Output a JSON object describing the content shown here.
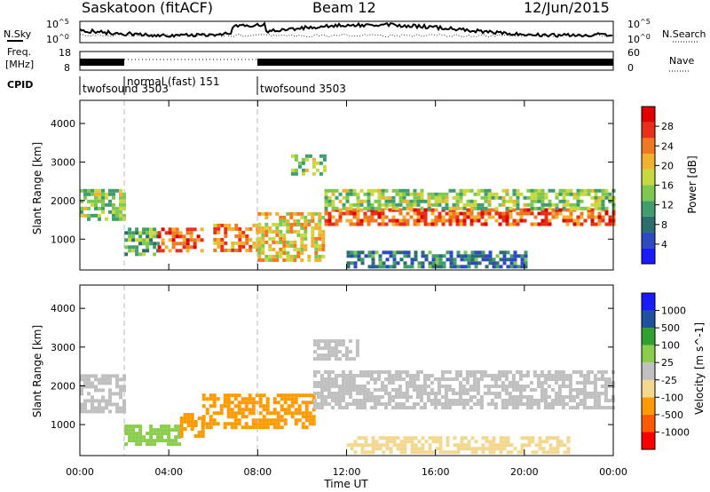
{
  "header": {
    "station": "Saskatoon (fitACF)",
    "beam": "Beam 12",
    "date": "12/Jun/2015"
  },
  "left_labels": {
    "nsky": "N.Sky",
    "freq": "Freq.",
    "mhz": "[MHz]",
    "cpid": "CPID"
  },
  "right_labels": {
    "nsearch": "N.Search",
    "nave": "Nave"
  },
  "noise_axis": {
    "top": "10^5",
    "bottom": "10^0"
  },
  "freq_axis": {
    "top": "18",
    "bottom": "8"
  },
  "nave_axis": {
    "top": "60",
    "bottom": "0"
  },
  "cpid_segments": [
    {
      "start_hour": 0.0,
      "label": "twofsound 3503"
    },
    {
      "start_hour": 2.0,
      "label": "normal (fast) 151"
    },
    {
      "start_hour": 8.0,
      "label": "twofsound 3503"
    }
  ],
  "colors": {
    "power": [
      "#1a1aff",
      "#2d4bbf",
      "#2a6e6e",
      "#3f9e6b",
      "#7ec850",
      "#c8d840",
      "#f0b030",
      "#f07820",
      "#e83018",
      "#e00000"
    ],
    "velocity": [
      "#ff0000",
      "#ff5a00",
      "#ff9a00",
      "#f3d890",
      "#c0c0c0",
      "#8acd4d",
      "#30a030",
      "#2050a0",
      "#1a1aff"
    ],
    "vmap_key": {
      "-1200": "#ff0000",
      "-800": "#ff5a00",
      "-300": "#ff9a00",
      "-60": "#f3d890",
      "0": "#c0c0c0",
      "60": "#8acd4d",
      "300": "#30a030",
      "800": "#2050a0",
      "1200": "#1a1aff"
    }
  },
  "chart_data": [
    {
      "type": "heatmap",
      "title": "",
      "xlabel": "Time UT",
      "ylabel": "Slant Range [km]",
      "x_ticks": [
        "00:00",
        "04:00",
        "08:00",
        "12:00",
        "16:00",
        "20:00",
        "00:00"
      ],
      "xlim": [
        0,
        24
      ],
      "ylim": [
        200,
        4600
      ],
      "y_ticks": [
        "1000",
        "2000",
        "3000",
        "4000"
      ],
      "colorbar": {
        "label": "Power [dB]",
        "ticks": [
          "4",
          "8",
          "12",
          "16",
          "20",
          "24",
          "28"
        ],
        "range": [
          0,
          30
        ]
      },
      "regions": [
        {
          "t0": 0.0,
          "t1": 2.0,
          "r0": 1500,
          "r1": 2300,
          "value": 14
        },
        {
          "t0": 2.0,
          "t1": 3.5,
          "r0": 600,
          "r1": 1300,
          "value": 12
        },
        {
          "t0": 3.5,
          "t1": 5.5,
          "r0": 700,
          "r1": 1300,
          "value": 24
        },
        {
          "t0": 6.0,
          "t1": 8.0,
          "r0": 700,
          "r1": 1400,
          "value": 22
        },
        {
          "t0": 8.0,
          "t1": 11.0,
          "r0": 500,
          "r1": 1700,
          "value": 18
        },
        {
          "t0": 9.5,
          "t1": 11.0,
          "r0": 2700,
          "r1": 3200,
          "value": 14
        },
        {
          "t0": 11.0,
          "t1": 24.0,
          "r0": 1400,
          "r1": 1800,
          "value": 24
        },
        {
          "t0": 11.0,
          "t1": 24.0,
          "r0": 1800,
          "r1": 2300,
          "value": 14
        },
        {
          "t0": 12.0,
          "t1": 20.0,
          "r0": 300,
          "r1": 700,
          "value": 8
        }
      ]
    },
    {
      "type": "heatmap",
      "title": "",
      "xlabel": "Time UT",
      "ylabel": "Slant Range [km]",
      "x_ticks": [
        "00:00",
        "04:00",
        "08:00",
        "12:00",
        "16:00",
        "20:00",
        "00:00"
      ],
      "xlim": [
        0,
        24
      ],
      "ylim": [
        200,
        4600
      ],
      "y_ticks": [
        "1000",
        "2000",
        "3000",
        "4000"
      ],
      "colorbar": {
        "label": "Velocity [m s^-1]",
        "ticks": [
          "-1000",
          "-500",
          "-100",
          "-25",
          "25",
          "100",
          "500",
          "1000"
        ]
      },
      "regions": [
        {
          "t0": 0.0,
          "t1": 2.0,
          "r0": 1300,
          "r1": 2300,
          "value": 0
        },
        {
          "t0": 2.0,
          "t1": 4.5,
          "r0": 500,
          "r1": 1000,
          "value": 150
        },
        {
          "t0": 4.5,
          "t1": 5.5,
          "r0": 700,
          "r1": 1300,
          "value": -300
        },
        {
          "t0": 5.5,
          "t1": 10.5,
          "r0": 900,
          "r1": 1800,
          "value": -300
        },
        {
          "t0": 10.5,
          "t1": 24.0,
          "r0": 1400,
          "r1": 2400,
          "value": 0
        },
        {
          "t0": 10.5,
          "t1": 12.5,
          "r0": 2700,
          "r1": 3200,
          "value": 0
        },
        {
          "t0": 12.0,
          "t1": 22.0,
          "r0": 300,
          "r1": 700,
          "value": -60
        }
      ]
    }
  ]
}
